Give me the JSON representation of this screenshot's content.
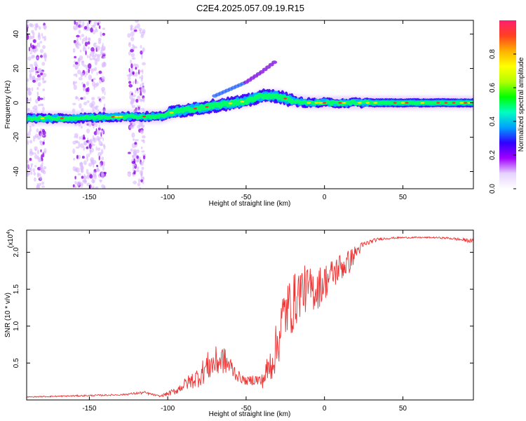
{
  "figure": {
    "title": "C2E4.2025.057.09.19.R15"
  },
  "chart_data": [
    {
      "type": "heatmap",
      "xlabel": "Height of straight line (km)",
      "ylabel": "Frequency (Hz)",
      "xlim": [
        -190,
        95
      ],
      "ylim": [
        -50,
        48
      ],
      "x_ticks": [
        -150,
        -100,
        -50,
        0,
        50
      ],
      "y_ticks": [
        -40,
        -20,
        0,
        20,
        40
      ],
      "colorbar": {
        "label": "Normalized spectral amplitude",
        "range": [
          0,
          1
        ],
        "ticks": [
          0.0,
          0.2,
          0.4,
          0.6,
          0.8
        ],
        "colors": [
          "#ffffff",
          "#e6d2ff",
          "#a000ff",
          "#3000ff",
          "#00a0ff",
          "#00ffc0",
          "#00ff00",
          "#b4ff00",
          "#ffff00",
          "#ffb000",
          "#ff4020",
          "#ff2070"
        ]
      },
      "main_band": [
        {
          "x": -190,
          "f": -9
        },
        {
          "x": -160,
          "f": -9
        },
        {
          "x": -130,
          "f": -8
        },
        {
          "x": -105,
          "f": -8
        },
        {
          "x": -95,
          "f": -5
        },
        {
          "x": -80,
          "f": -3
        },
        {
          "x": -65,
          "f": -1
        },
        {
          "x": -50,
          "f": 1
        },
        {
          "x": -40,
          "f": 4
        },
        {
          "x": -30,
          "f": 4
        },
        {
          "x": -20,
          "f": 1
        },
        {
          "x": -10,
          "f": 0
        },
        {
          "x": 0,
          "f": 0
        },
        {
          "x": 20,
          "f": 0
        },
        {
          "x": 50,
          "f": 0
        },
        {
          "x": 95,
          "f": 0
        }
      ],
      "upper_branch": [
        {
          "x": -70,
          "f": 4
        },
        {
          "x": -60,
          "f": 8
        },
        {
          "x": -50,
          "f": 12
        },
        {
          "x": -40,
          "f": 18
        },
        {
          "x": -30,
          "f": 25
        }
      ],
      "noise_regions": [
        {
          "x0": -190,
          "x1": -178
        },
        {
          "x0": -160,
          "x1": -140
        },
        {
          "x0": -125,
          "x1": -115
        }
      ]
    },
    {
      "type": "line",
      "xlabel": "Height of straight line (km)",
      "ylabel": "SNR (10 * v/v)",
      "y_multiplier": "(x10",
      "y_multiplier_exp": "4",
      "y_multiplier_close": ")",
      "xlim": [
        -190,
        95
      ],
      "ylim": [
        0,
        2.3
      ],
      "x_ticks": [
        -150,
        -100,
        -50,
        0,
        50
      ],
      "y_ticks": [
        0.5,
        1.0,
        1.5,
        2.0
      ],
      "series": [
        {
          "color": "#ee3333",
          "x": [
            -190,
            -170,
            -150,
            -130,
            -115,
            -105,
            -95,
            -90,
            -80,
            -75,
            -70,
            -65,
            -60,
            -55,
            -50,
            -45,
            -40,
            -35,
            -30,
            -28,
            -25,
            -20,
            -15,
            -10,
            -5,
            0,
            5,
            10,
            15,
            20,
            25,
            30,
            35,
            40,
            50,
            60,
            70,
            80,
            95
          ],
          "y": [
            0.04,
            0.05,
            0.06,
            0.07,
            0.1,
            0.05,
            0.12,
            0.2,
            0.32,
            0.45,
            0.5,
            0.55,
            0.45,
            0.32,
            0.25,
            0.28,
            0.25,
            0.45,
            0.75,
            1.0,
            1.2,
            1.3,
            1.5,
            1.5,
            1.5,
            1.6,
            1.7,
            1.8,
            1.85,
            2.0,
            2.1,
            2.15,
            2.18,
            2.19,
            2.2,
            2.2,
            2.2,
            2.19,
            2.15
          ],
          "jitter": [
            0.005,
            0.01,
            0.01,
            0.01,
            0.02,
            0.01,
            0.05,
            0.08,
            0.15,
            0.2,
            0.22,
            0.2,
            0.15,
            0.08,
            0.05,
            0.08,
            0.1,
            0.25,
            0.35,
            0.4,
            0.4,
            0.4,
            0.35,
            0.3,
            0.3,
            0.25,
            0.22,
            0.2,
            0.18,
            0.1,
            0.05,
            0.03,
            0.02,
            0.015,
            0.01,
            0.01,
            0.01,
            0.015,
            0.03
          ]
        }
      ]
    }
  ]
}
